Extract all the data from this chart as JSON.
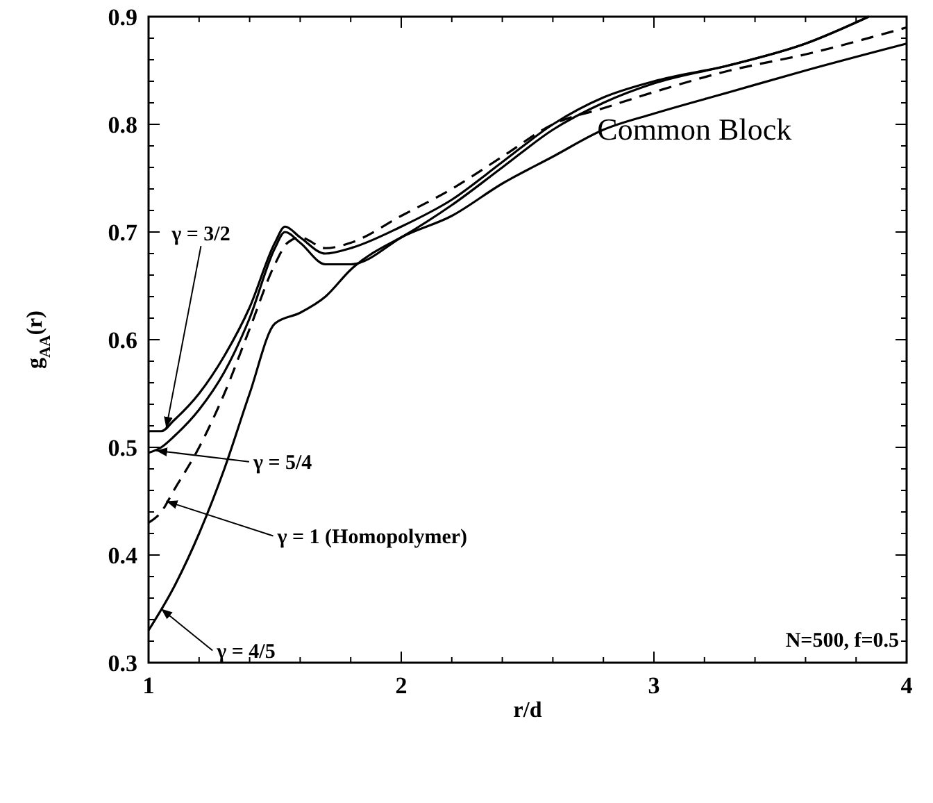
{
  "chart_data": {
    "type": "line",
    "xlabel": "r/d",
    "ylabel": "g$_{AA}$(r)",
    "xlim": [
      1,
      4
    ],
    "ylim": [
      0.3,
      0.9
    ],
    "xticks": [
      1,
      {
        "value": 1.2,
        "label": null
      },
      {
        "value": 1.4,
        "label": null
      },
      {
        "value": 1.6,
        "label": null
      },
      {
        "value": 1.8,
        "label": null
      },
      2,
      {
        "value": 2.2,
        "label": null
      },
      {
        "value": 2.4,
        "label": null
      },
      {
        "value": 2.6,
        "label": null
      },
      {
        "value": 2.8,
        "label": null
      },
      3,
      {
        "value": 3.2,
        "label": null
      },
      {
        "value": 3.4,
        "label": null
      },
      {
        "value": 3.6,
        "label": null
      },
      {
        "value": 3.8,
        "label": null
      },
      4
    ],
    "yticks": [
      0.3,
      {
        "value": 0.32,
        "label": null
      },
      {
        "value": 0.34,
        "label": null
      },
      {
        "value": 0.36,
        "label": null
      },
      {
        "value": 0.38,
        "label": null
      },
      0.4,
      {
        "value": 0.42,
        "label": null
      },
      {
        "value": 0.44,
        "label": null
      },
      {
        "value": 0.46,
        "label": null
      },
      {
        "value": 0.48,
        "label": null
      },
      0.5,
      {
        "value": 0.52,
        "label": null
      },
      {
        "value": 0.54,
        "label": null
      },
      {
        "value": 0.56,
        "label": null
      },
      {
        "value": 0.58,
        "label": null
      },
      0.6,
      {
        "value": 0.62,
        "label": null
      },
      {
        "value": 0.64,
        "label": null
      },
      {
        "value": 0.66,
        "label": null
      },
      {
        "value": 0.68,
        "label": null
      },
      0.7,
      {
        "value": 0.72,
        "label": null
      },
      {
        "value": 0.74,
        "label": null
      },
      {
        "value": 0.76,
        "label": null
      },
      {
        "value": 0.78,
        "label": null
      },
      0.8,
      {
        "value": 0.82,
        "label": null
      },
      {
        "value": 0.84,
        "label": null
      },
      {
        "value": 0.86,
        "label": null
      },
      {
        "value": 0.88,
        "label": null
      },
      0.9
    ],
    "grid": false,
    "series": [
      {
        "color": "#000000",
        "line_style": "solid",
        "x": [
          1,
          1.05,
          1.1,
          1.2,
          1.3,
          1.4,
          1.5,
          1.54,
          1.6,
          1.7,
          1.8,
          2,
          2.2,
          2.4,
          2.6,
          2.8,
          3,
          3.3,
          3.6,
          3.85
        ],
        "values": [
          0.515,
          0.515,
          0.525,
          0.55,
          0.585,
          0.63,
          0.69,
          0.705,
          0.695,
          0.68,
          0.685,
          0.705,
          0.73,
          0.765,
          0.8,
          0.825,
          0.84,
          0.855,
          0.875,
          0.9
        ]
      },
      {
        "color": "#000000",
        "line_style": "solid",
        "x": [
          1,
          1.05,
          1.1,
          1.2,
          1.3,
          1.4,
          1.5,
          1.54,
          1.6,
          1.7,
          1.8,
          2,
          2.2,
          2.4,
          2.6,
          2.8,
          3,
          3.3,
          3.6,
          3.85
        ],
        "values": [
          0.495,
          0.5,
          0.51,
          0.535,
          0.57,
          0.62,
          0.685,
          0.7,
          0.69,
          0.67,
          0.67,
          0.695,
          0.725,
          0.76,
          0.795,
          0.82,
          0.838,
          0.855,
          0.875,
          0.9
        ]
      },
      {
        "color": "#000000",
        "line_style": "dashed",
        "x": [
          1,
          1.05,
          1.1,
          1.2,
          1.3,
          1.4,
          1.5,
          1.55,
          1.6,
          1.7,
          1.8,
          2,
          2.2,
          2.4,
          2.6,
          2.8,
          3,
          3.3,
          3.6,
          4
        ],
        "values": [
          0.43,
          0.44,
          0.46,
          0.5,
          0.55,
          0.61,
          0.67,
          0.69,
          0.695,
          0.685,
          0.69,
          0.715,
          0.74,
          0.77,
          0.8,
          0.815,
          0.83,
          0.85,
          0.865,
          0.89
        ]
      },
      {
        "color": "#000000",
        "line_style": "solid",
        "x": [
          1,
          1.1,
          1.2,
          1.3,
          1.4,
          1.5,
          1.6,
          1.7,
          1.8,
          2,
          2.2,
          2.4,
          2.6,
          2.8,
          3,
          3.3,
          3.6,
          4
        ],
        "values": [
          0.33,
          0.37,
          0.42,
          0.48,
          0.55,
          0.615,
          0.625,
          0.64,
          0.665,
          0.695,
          0.715,
          0.745,
          0.77,
          0.795,
          0.81,
          0.83,
          0.85,
          0.875
        ]
      }
    ],
    "annotations": [
      {
        "text": "γ = 3/2",
        "x": 1.07,
        "y": 0.518
      },
      {
        "text": "γ = 5/4",
        "x": 1.03,
        "y": 0.497
      },
      {
        "text": "γ = 1 (Homopolymer)",
        "x": 1.07,
        "y": 0.45
      },
      {
        "text": "γ = 4/5",
        "x": 1.05,
        "y": 0.35
      },
      "Common Block",
      "N=500,  f=0.5"
    ]
  }
}
